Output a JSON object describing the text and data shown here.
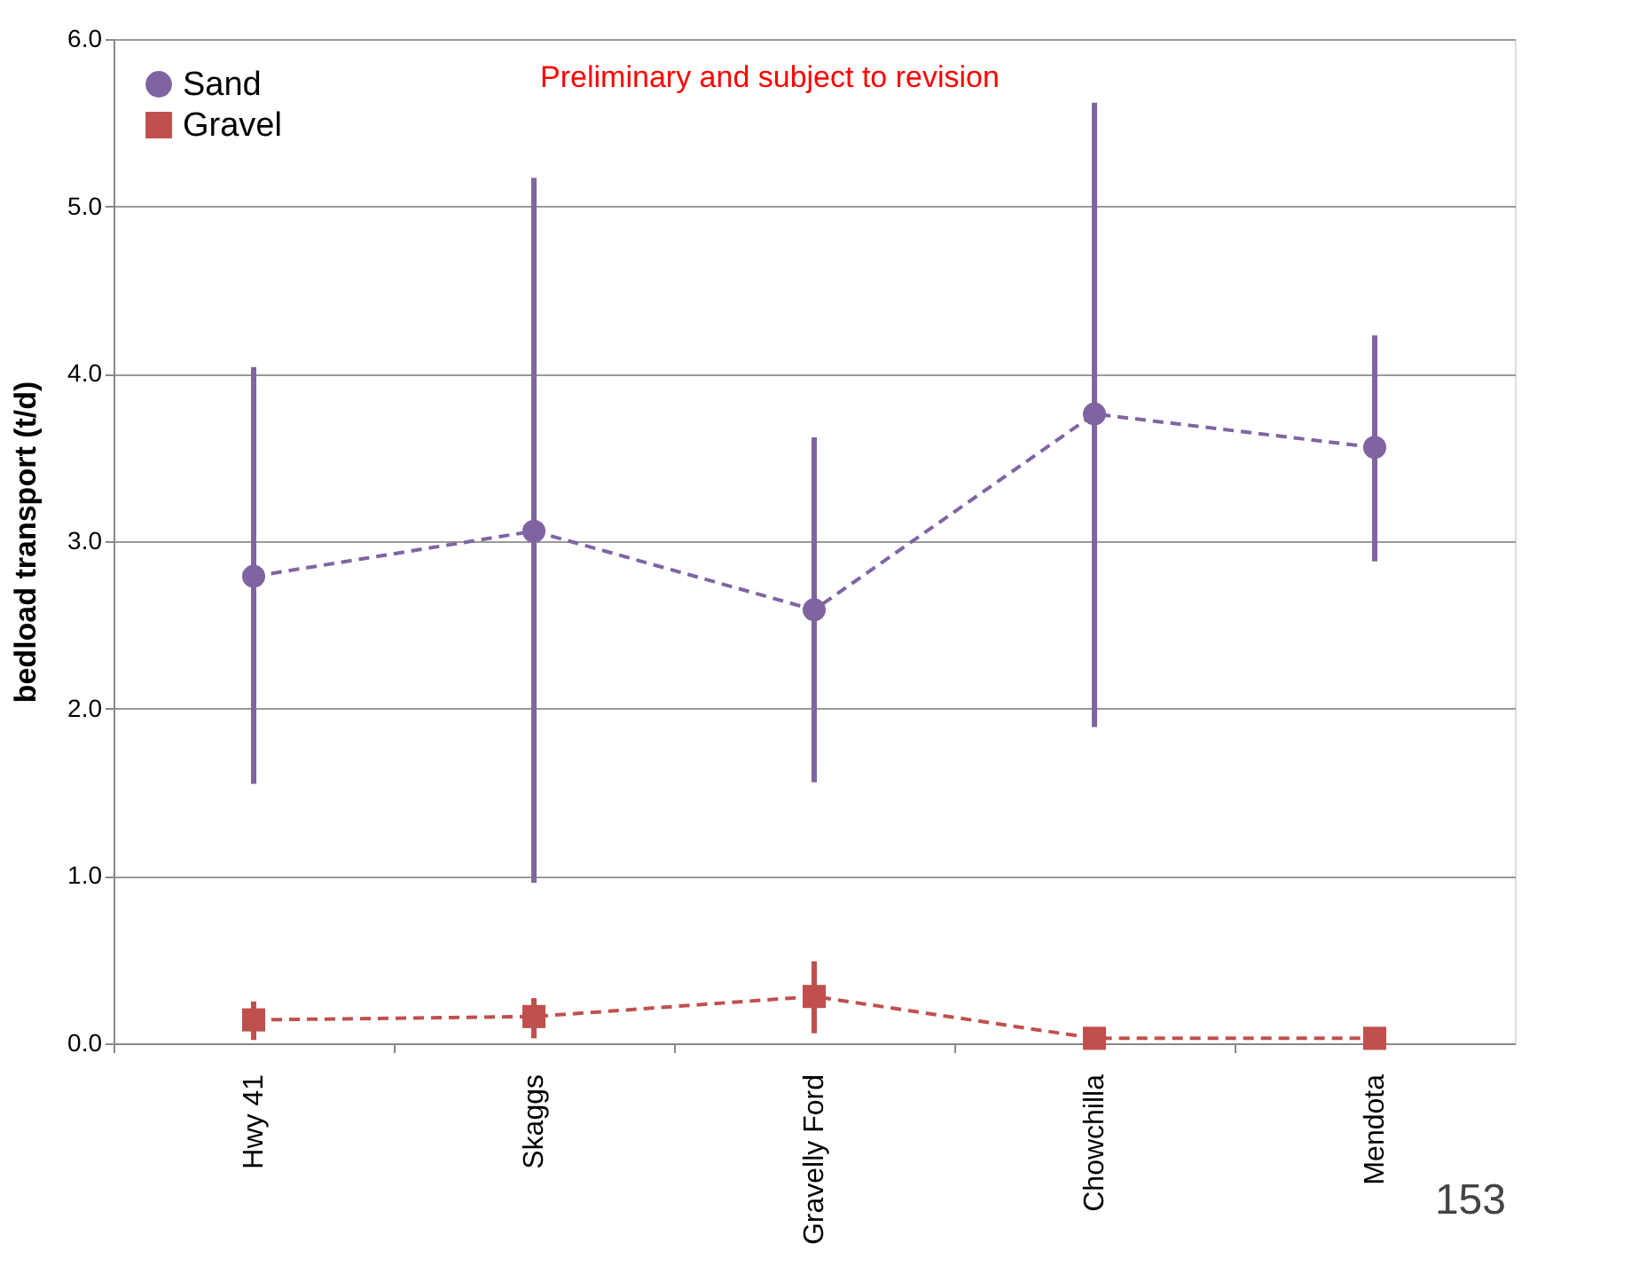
{
  "chart_data": {
    "type": "line",
    "ylabel": "bedload transport (t/d)",
    "categories": [
      "Hwy 41",
      "Skaggs",
      "Gravelly Ford",
      "Chowchilla",
      "Mendota"
    ],
    "series": [
      {
        "name": "Sand",
        "color": "#8064a2",
        "marker": "circle",
        "values": [
          2.79,
          3.06,
          2.59,
          3.76,
          3.56
        ],
        "errors": [
          [
            1.55,
            4.04
          ],
          [
            0.96,
            5.17
          ],
          [
            1.56,
            3.62
          ],
          [
            1.89,
            5.62
          ],
          [
            2.88,
            4.23
          ]
        ]
      },
      {
        "name": "Gravel",
        "color": "#c0504d",
        "marker": "square",
        "values": [
          0.14,
          0.16,
          0.28,
          0.03,
          0.03
        ],
        "errors": [
          [
            0.02,
            0.25
          ],
          [
            0.03,
            0.27
          ],
          [
            0.06,
            0.49
          ],
          null,
          null
        ]
      }
    ],
    "ylim": [
      0,
      6
    ],
    "yticks": [
      {
        "value": 0,
        "label": "0.0"
      },
      {
        "value": 1,
        "label": "1.0"
      },
      {
        "value": 2,
        "label": "2.0"
      },
      {
        "value": 3,
        "label": "3.0"
      },
      {
        "value": 4,
        "label": "4.0"
      },
      {
        "value": 5,
        "label": "5.0"
      },
      {
        "value": 6,
        "label": "6.0"
      }
    ],
    "line_style": "dashed",
    "grid": "y",
    "legend": "top left",
    "annotations": [
      "Preliminary and subject to revision",
      "153"
    ]
  }
}
